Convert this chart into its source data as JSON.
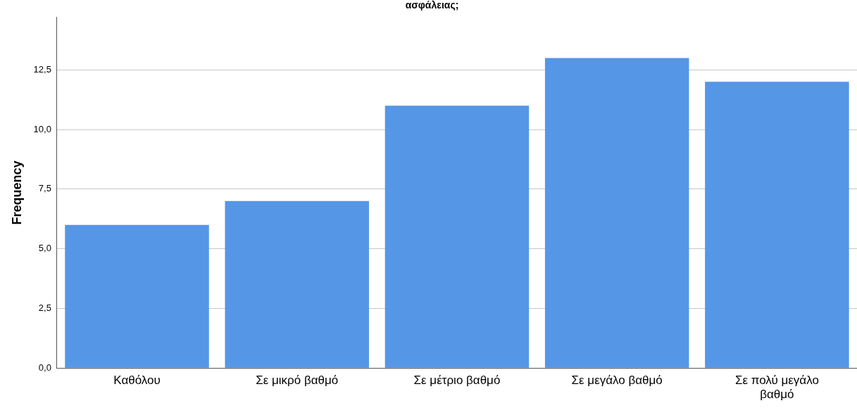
{
  "chart_data": {
    "type": "bar",
    "title": "ασφάλειας;",
    "ylabel": "Frequency",
    "categories": [
      "Καθόλου",
      "Σε μικρό βαθμό",
      "Σε μέτριο βαθμό",
      "Σε μεγάλο βαθμό",
      "Σε πολύ μεγάλο βαθμό"
    ],
    "values": [
      6,
      7,
      11,
      13,
      12
    ],
    "color": "#5596e6",
    "ylim": [
      0,
      14.7
    ],
    "yticks": [
      {
        "value": 0,
        "label": "0,0"
      },
      {
        "value": 2.5,
        "label": "2,5"
      },
      {
        "value": 5,
        "label": "5,0"
      },
      {
        "value": 7.5,
        "label": "7,5"
      },
      {
        "value": 10,
        "label": "10,0"
      },
      {
        "value": 12.5,
        "label": "12,5"
      }
    ],
    "grid": "y"
  }
}
